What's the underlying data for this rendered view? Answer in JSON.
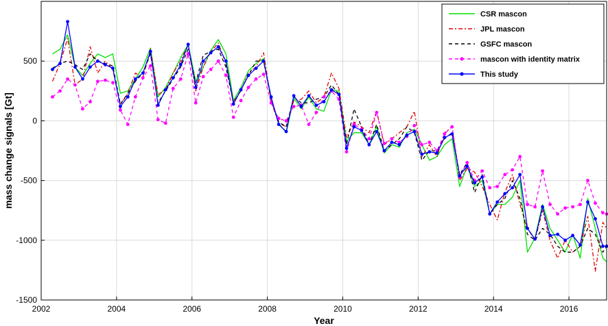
{
  "chart_data": {
    "type": "line",
    "title": "",
    "xlabel": "Year",
    "ylabel": "mass change signals [Gt]",
    "xlim": [
      2002,
      2017
    ],
    "ylim": [
      -1500,
      1000
    ],
    "xticks": [
      2002,
      2004,
      2006,
      2008,
      2010,
      2012,
      2014,
      2016
    ],
    "yticks": [
      -1500,
      -1000,
      -500,
      0,
      500
    ],
    "grid": true,
    "legend_position": "top-right",
    "x": [
      2002.3,
      2002.5,
      2002.7,
      2002.9,
      2003.1,
      2003.3,
      2003.5,
      2003.7,
      2003.9,
      2004.1,
      2004.3,
      2004.5,
      2004.7,
      2004.9,
      2005.1,
      2005.3,
      2005.5,
      2005.7,
      2005.9,
      2006.1,
      2006.3,
      2006.5,
      2006.7,
      2006.9,
      2007.1,
      2007.3,
      2007.5,
      2007.7,
      2007.9,
      2008.1,
      2008.3,
      2008.5,
      2008.7,
      2008.9,
      2009.1,
      2009.3,
      2009.5,
      2009.7,
      2009.9,
      2010.1,
      2010.3,
      2010.5,
      2010.7,
      2010.9,
      2011.1,
      2011.3,
      2011.5,
      2011.7,
      2011.9,
      2012.1,
      2012.3,
      2012.5,
      2012.7,
      2012.9,
      2013.1,
      2013.3,
      2013.5,
      2013.7,
      2013.9,
      2014.1,
      2014.3,
      2014.5,
      2014.7,
      2014.9,
      2015.1,
      2015.3,
      2015.5,
      2015.7,
      2015.9,
      2016.1,
      2016.3,
      2016.5,
      2016.7,
      2016.9,
      2017.0
    ],
    "series": [
      {
        "name": "CSR mascon",
        "color": "#00e000",
        "dash": "solid",
        "marker": "none",
        "values": [
          560,
          600,
          720,
          450,
          380,
          480,
          560,
          530,
          560,
          230,
          250,
          350,
          450,
          610,
          200,
          280,
          400,
          530,
          640,
          330,
          450,
          590,
          680,
          560,
          170,
          280,
          420,
          480,
          520,
          180,
          -20,
          -100,
          190,
          100,
          200,
          100,
          80,
          260,
          250,
          -170,
          -100,
          -100,
          -200,
          -50,
          -270,
          -200,
          -220,
          -100,
          -70,
          -200,
          -330,
          -300,
          -200,
          -150,
          -550,
          -380,
          -550,
          -500,
          -780,
          -700,
          -700,
          -640,
          -500,
          -1100,
          -980,
          -700,
          -900,
          -1000,
          -1100,
          -950,
          -1150,
          -650,
          -900,
          -1150,
          -1180
        ]
      },
      {
        "name": "JPL mascon",
        "color": "#e00000",
        "dash": "dashdot",
        "marker": "none",
        "values": [
          330,
          480,
          690,
          300,
          350,
          620,
          400,
          500,
          430,
          130,
          230,
          400,
          360,
          600,
          220,
          260,
          400,
          500,
          640,
          250,
          450,
          580,
          650,
          480,
          160,
          250,
          400,
          450,
          570,
          160,
          -20,
          -50,
          170,
          180,
          250,
          150,
          200,
          400,
          270,
          -140,
          -10,
          -50,
          -100,
          80,
          -200,
          -150,
          -100,
          -50,
          80,
          -300,
          -200,
          -300,
          -100,
          -50,
          -500,
          -400,
          -430,
          -550,
          -700,
          -830,
          -600,
          -450,
          -700,
          -900,
          -1000,
          -750,
          -1000,
          -1150,
          -1000,
          -1100,
          -1050,
          -800,
          -1260,
          -850,
          -900
        ]
      },
      {
        "name": "GSFC mascon",
        "color": "#000000",
        "dash": "dashed",
        "marker": "none",
        "values": [
          440,
          480,
          500,
          470,
          430,
          560,
          500,
          480,
          460,
          140,
          230,
          330,
          400,
          560,
          150,
          250,
          350,
          450,
          600,
          320,
          550,
          580,
          600,
          450,
          150,
          260,
          380,
          500,
          500,
          180,
          -10,
          -50,
          200,
          150,
          150,
          180,
          200,
          300,
          220,
          -200,
          100,
          -50,
          -200,
          -30,
          -250,
          -200,
          -150,
          -50,
          -100,
          -330,
          -250,
          -250,
          -150,
          -100,
          -450,
          -350,
          -600,
          -450,
          -780,
          -700,
          -650,
          -500,
          -650,
          -950,
          -1000,
          -900,
          -950,
          -1050,
          -1100,
          -1100,
          -1050,
          -900,
          -950,
          -1100,
          -1050
        ]
      },
      {
        "name": "mascon with identity matrix",
        "color": "#ff00ff",
        "dash": "dashed",
        "marker": "circle",
        "values": [
          200,
          250,
          350,
          300,
          100,
          160,
          330,
          340,
          320,
          90,
          -30,
          200,
          360,
          460,
          10,
          -20,
          270,
          350,
          560,
          150,
          370,
          430,
          500,
          380,
          30,
          170,
          280,
          350,
          390,
          150,
          20,
          0,
          120,
          130,
          -30,
          70,
          200,
          250,
          180,
          -260,
          -30,
          -70,
          -150,
          70,
          -190,
          -150,
          -180,
          -130,
          -40,
          -200,
          -180,
          -250,
          -110,
          -50,
          -470,
          -350,
          -500,
          -420,
          -560,
          -550,
          -450,
          -410,
          -300,
          -700,
          -720,
          -420,
          -700,
          -780,
          -730,
          -720,
          -700,
          -500,
          -690,
          -770,
          -780
        ]
      },
      {
        "name": "This study",
        "color": "#0000ff",
        "dash": "solid",
        "marker": "circle",
        "values": [
          430,
          480,
          830,
          450,
          350,
          450,
          500,
          470,
          440,
          120,
          200,
          350,
          400,
          580,
          130,
          260,
          360,
          470,
          640,
          280,
          500,
          570,
          620,
          500,
          140,
          260,
          380,
          440,
          500,
          200,
          -30,
          -90,
          210,
          120,
          210,
          130,
          160,
          260,
          220,
          -230,
          -50,
          -80,
          -200,
          -90,
          -250,
          -180,
          -200,
          -120,
          -90,
          -280,
          -260,
          -270,
          -140,
          -110,
          -460,
          -380,
          -520,
          -470,
          -780,
          -680,
          -610,
          -560,
          -450,
          -900,
          -990,
          -720,
          -960,
          -950,
          -1000,
          -960,
          -1040,
          -680,
          -820,
          -1050,
          -1050
        ]
      }
    ]
  }
}
